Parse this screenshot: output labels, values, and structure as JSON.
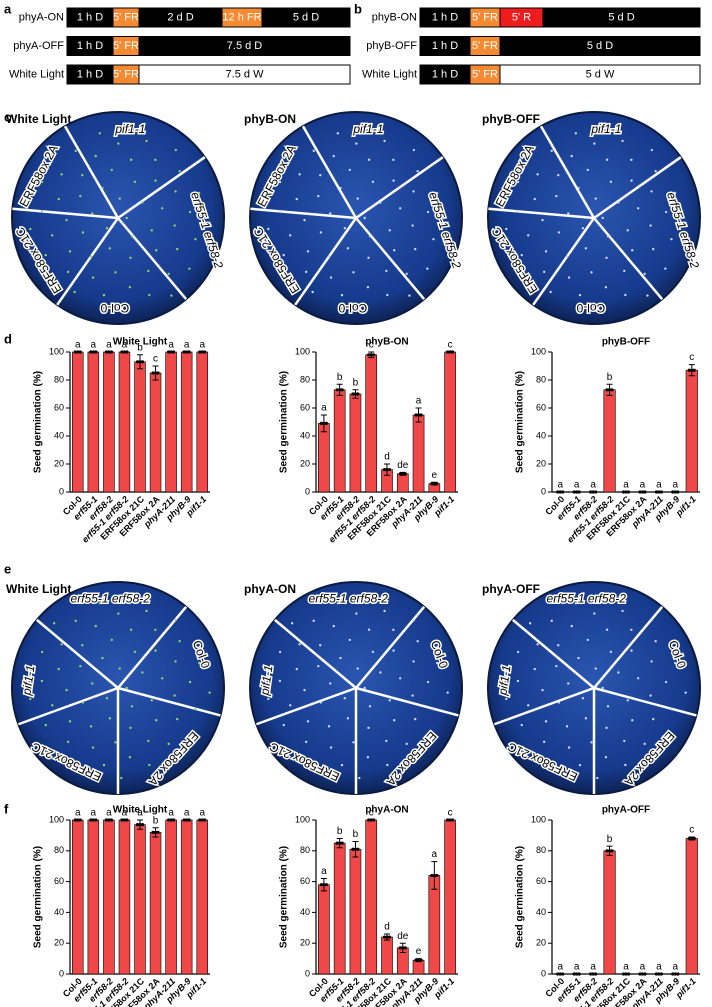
{
  "panel_letters": [
    "a",
    "b",
    "c",
    "d",
    "e",
    "f"
  ],
  "schedules": [
    {
      "rows": [
        {
          "label": "phyA-ON",
          "segments": [
            {
              "text": "1 h D",
              "color": "#000000"
            },
            {
              "text": "5' FR",
              "color": "#f58a32"
            },
            {
              "text": "2 d D",
              "color": "#000000"
            },
            {
              "text": "12 h FR",
              "color": "#f58a32"
            },
            {
              "text": "5 d D",
              "color": "#000000"
            }
          ]
        },
        {
          "label": "phyA-OFF",
          "segments": [
            {
              "text": "1 h D",
              "color": "#000000"
            },
            {
              "text": "5' FR",
              "color": "#f58a32"
            },
            {
              "text": "7.5 d D",
              "color": "#000000"
            }
          ]
        },
        {
          "label": "White Light",
          "segments": [
            {
              "text": "1 h D",
              "color": "#000000"
            },
            {
              "text": "5' FR",
              "color": "#f58a32"
            },
            {
              "text": "7.5 d W",
              "color": "#ffffff"
            }
          ]
        }
      ]
    },
    {
      "rows": [
        {
          "label": "phyB-ON",
          "segments": [
            {
              "text": "1 h D",
              "color": "#000000"
            },
            {
              "text": "5' FR",
              "color": "#f58a32"
            },
            {
              "text": "5' R",
              "color": "#ee1c1c"
            },
            {
              "text": "5 d D",
              "color": "#000000"
            }
          ]
        },
        {
          "label": "phyB-OFF",
          "segments": [
            {
              "text": "1 h D",
              "color": "#000000"
            },
            {
              "text": "5' FR",
              "color": "#f58a32"
            },
            {
              "text": "5 d D",
              "color": "#000000"
            }
          ]
        },
        {
          "label": "White Light",
          "segments": [
            {
              "text": "1 h D",
              "color": "#000000"
            },
            {
              "text": "5' FR",
              "color": "#f58a32"
            },
            {
              "text": "5 d W",
              "color": "#ffffff"
            }
          ]
        }
      ]
    }
  ],
  "plates": [
    {
      "title": "White Light",
      "labels": [
        "pif1-1",
        "erf55-1 erf58-2",
        "Col-0",
        "ERF58ox 21C",
        "ERF58ox 2A"
      ]
    },
    {
      "title": "phyB-ON",
      "labels": [
        "pif1-1",
        "erf55-1 erf58-2",
        "Col-0",
        "ERF58ox 21C",
        "ERF58ox 2A"
      ]
    },
    {
      "title": "phyB-OFF",
      "labels": [
        "pif1-1",
        "erf55-1 erf58-2",
        "Col-0",
        "ERF58ox 21C",
        "ERF58ox 2A"
      ]
    },
    {
      "title": "White Light",
      "labels": [
        "erf55-1 erf58-2",
        "Col-0",
        "ERF58ox 2A",
        "ERF58ox 21C",
        "pif1-1"
      ]
    },
    {
      "title": "phyA-ON",
      "labels": [
        "erf55-1 erf58-2",
        "Col-0",
        "ERF58ox 2A",
        "ERF58ox 21C",
        "pif1-1"
      ]
    },
    {
      "title": "phyA-OFF",
      "labels": [
        "erf55-1 erf58-2",
        "Col-0",
        "ERF58ox 2A",
        "ERF58ox 21C",
        "pif1-1"
      ]
    }
  ],
  "chart_data": [
    {
      "type": "bar",
      "title": "White Light",
      "y_label": "Seed germination (%)",
      "categories": [
        "Col-0",
        "erf55-1",
        "erf58-2",
        "erf55-1 erf58-2",
        "ERF58ox 21C",
        "ERF58ox 2A",
        "phyA-211",
        "phyB-9",
        "pif1-1"
      ],
      "values": [
        100,
        100,
        100,
        100,
        93,
        85,
        100,
        100,
        100
      ],
      "errors": [
        0,
        0,
        0,
        0,
        5,
        5,
        0,
        0,
        0
      ],
      "letters": [
        "a",
        "a",
        "a",
        "a",
        "b",
        "c",
        "a",
        "a",
        "a"
      ],
      "color": "#f04848",
      "ylim": [
        0,
        100
      ],
      "yticks": [
        0,
        20,
        40,
        60,
        80,
        100
      ]
    },
    {
      "type": "bar",
      "title": "phyB-ON",
      "y_label": "Seed germination (%)",
      "categories": [
        "Col-0",
        "erf55-1",
        "erf58-2",
        "erf55-1 erf58-2",
        "ERF58ox 21C",
        "ERF58ox 2A",
        "phyA-211",
        "phyB-9",
        "pif1-1"
      ],
      "values": [
        49,
        73,
        70,
        98,
        16,
        13,
        55,
        6,
        100
      ],
      "errors": [
        6,
        4,
        3,
        2,
        4,
        1,
        5,
        1,
        0
      ],
      "letters": [
        "a",
        "b",
        "b",
        "c",
        "d",
        "de",
        "a",
        "e",
        "c"
      ],
      "color": "#f04848",
      "ylim": [
        0,
        100
      ],
      "yticks": [
        0,
        20,
        40,
        60,
        80,
        100
      ]
    },
    {
      "type": "bar",
      "title": "phyB-OFF",
      "y_label": "Seed germination (%)",
      "categories": [
        "Col-0",
        "erf55-1",
        "erf58-2",
        "erf55-1 erf58-2",
        "ERF58ox 21C",
        "ERF58ox 2A",
        "phyA-211",
        "phyB-9",
        "pif1-1"
      ],
      "values": [
        0,
        0,
        0,
        73,
        0,
        0,
        0,
        0,
        87
      ],
      "errors": [
        0,
        0,
        0,
        4,
        0,
        0,
        0,
        0,
        4
      ],
      "letters": [
        "a",
        "a",
        "a",
        "b",
        "a",
        "a",
        "a",
        "a",
        "c"
      ],
      "color": "#f04848",
      "ylim": [
        0,
        100
      ],
      "yticks": [
        0,
        20,
        40,
        60,
        80,
        100
      ]
    },
    {
      "type": "bar",
      "title": "White Light",
      "y_label": "Seed germination (%)",
      "categories": [
        "Col-0",
        "erf55-1",
        "erf58-2",
        "erf55-1 erf58-2",
        "ERF58ox 21C",
        "ERF58ox 2A",
        "phyA-211",
        "phyB-9",
        "pif1-1"
      ],
      "values": [
        100,
        100,
        100,
        100,
        97,
        92,
        100,
        100,
        100
      ],
      "errors": [
        0,
        0,
        0,
        0,
        3,
        3,
        0,
        0,
        0
      ],
      "letters": [
        "a",
        "a",
        "a",
        "a",
        "a",
        "b",
        "a",
        "a",
        "a"
      ],
      "color": "#f04848",
      "ylim": [
        0,
        100
      ],
      "yticks": [
        0,
        20,
        40,
        60,
        80,
        100
      ]
    },
    {
      "type": "bar",
      "title": "phyA-ON",
      "y_label": "Seed germination (%)",
      "categories": [
        "Col-0",
        "erf55-1",
        "erf58-2",
        "erf55-1 erf58-2",
        "ERF58ox 21C",
        "ERF58ox 2A",
        "phyA-211",
        "phyB-9",
        "pif1-1"
      ],
      "values": [
        58,
        85,
        81,
        100,
        24,
        17,
        9,
        64,
        100
      ],
      "errors": [
        4,
        3,
        5,
        0,
        2,
        3,
        1,
        9,
        0
      ],
      "letters": [
        "a",
        "b",
        "b",
        "c",
        "d",
        "de",
        "e",
        "a",
        "c"
      ],
      "color": "#f04848",
      "ylim": [
        0,
        100
      ],
      "yticks": [
        0,
        20,
        40,
        60,
        80,
        100
      ]
    },
    {
      "type": "bar",
      "title": "phyA-OFF",
      "y_label": "Seed germination (%)",
      "categories": [
        "Col-0",
        "erf55-1",
        "erf58-2",
        "erf55-1 erf58-2",
        "ERF58ox 21C",
        "ERF58ox 2A",
        "phyA-211",
        "phyB-9",
        "pif1-1"
      ],
      "values": [
        0,
        0,
        0,
        80,
        0,
        0,
        0,
        0,
        88
      ],
      "errors": [
        0,
        0,
        0,
        3,
        0,
        0,
        0,
        0,
        1
      ],
      "letters": [
        "a",
        "a",
        "a",
        "b",
        "a",
        "a",
        "a",
        "a",
        "c"
      ],
      "color": "#f04848",
      "ylim": [
        0,
        100
      ],
      "yticks": [
        0,
        20,
        40,
        60,
        80,
        100
      ]
    }
  ]
}
